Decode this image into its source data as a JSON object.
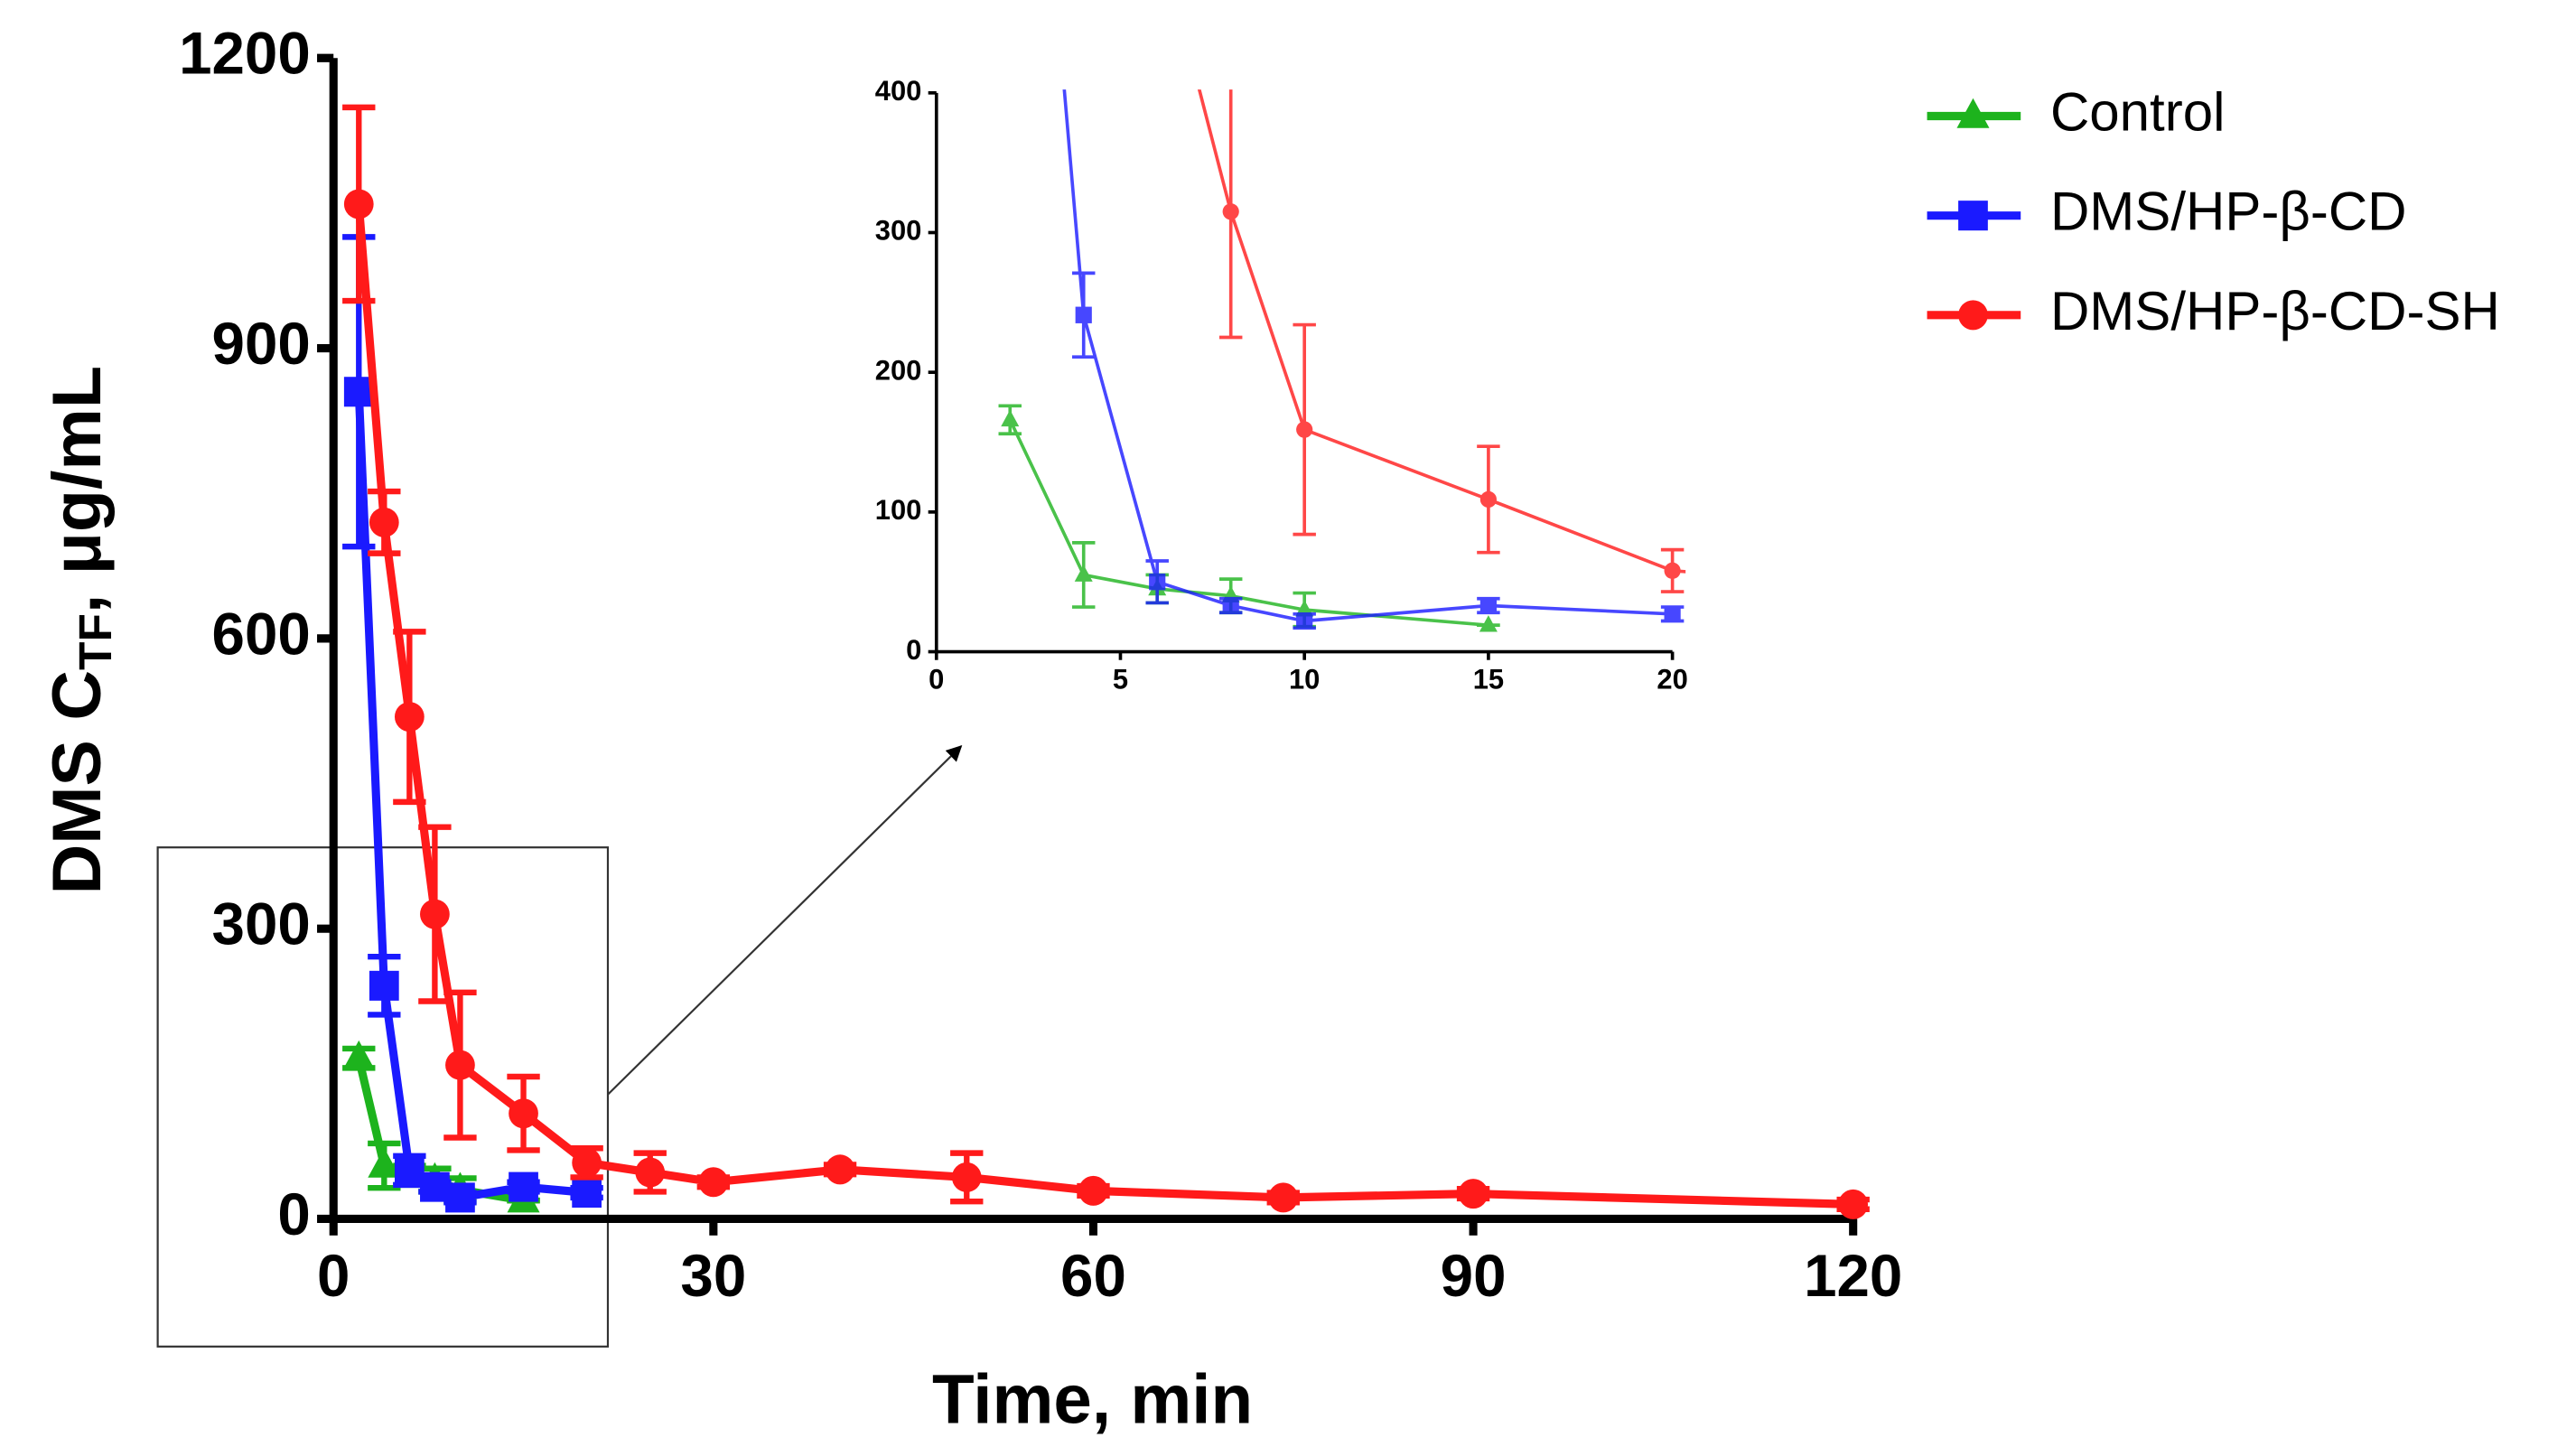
{
  "chart_data": {
    "type": "line",
    "x_label": "Time, min",
    "y_label": "DMS C",
    "y_label_sub": "TF",
    "y_label_suffix": ", μg/mL",
    "xlim": [
      0,
      120
    ],
    "xticks": [
      0,
      30,
      60,
      90,
      120
    ],
    "ylim": [
      0,
      1200
    ],
    "yticks": [
      0,
      300,
      600,
      900,
      1200
    ],
    "inset": {
      "xlim": [
        0,
        20
      ],
      "xticks": [
        0,
        5,
        10,
        15,
        20
      ],
      "ylim": [
        0,
        400
      ],
      "yticks": [
        0,
        100,
        200,
        300,
        400
      ]
    },
    "legend": "upper right",
    "series": [
      {
        "name": "Control",
        "color": "#1db31d",
        "marker": "triangle",
        "x": [
          2,
          4,
          6,
          8,
          10,
          15
        ],
        "values": [
          166,
          55,
          45,
          40,
          30,
          19
        ],
        "errors": [
          10,
          23,
          10,
          12,
          12,
          0
        ]
      },
      {
        "name": "DMS/HP-β-CD",
        "color": "#1a1aff",
        "marker": "square",
        "x": [
          2,
          4,
          6,
          8,
          10,
          15,
          20
        ],
        "values": [
          855,
          241,
          50,
          33,
          22,
          33,
          27
        ],
        "errors": [
          160,
          30,
          15,
          5,
          5,
          5,
          5
        ]
      },
      {
        "name": "DMS/HP-β-CD-SH",
        "color": "#ff1a1a",
        "marker": "circle",
        "x": [
          2,
          4,
          6,
          8,
          10,
          15,
          20,
          25,
          30,
          40,
          50,
          60,
          75,
          90,
          120
        ],
        "values": [
          1049,
          720,
          519,
          315,
          159,
          109,
          58,
          48,
          38,
          51,
          43,
          29,
          22,
          26,
          15
        ],
        "errors": [
          100,
          32,
          88,
          90,
          75,
          38,
          15,
          20,
          5,
          5,
          25,
          5,
          5,
          5,
          5
        ]
      }
    ]
  }
}
